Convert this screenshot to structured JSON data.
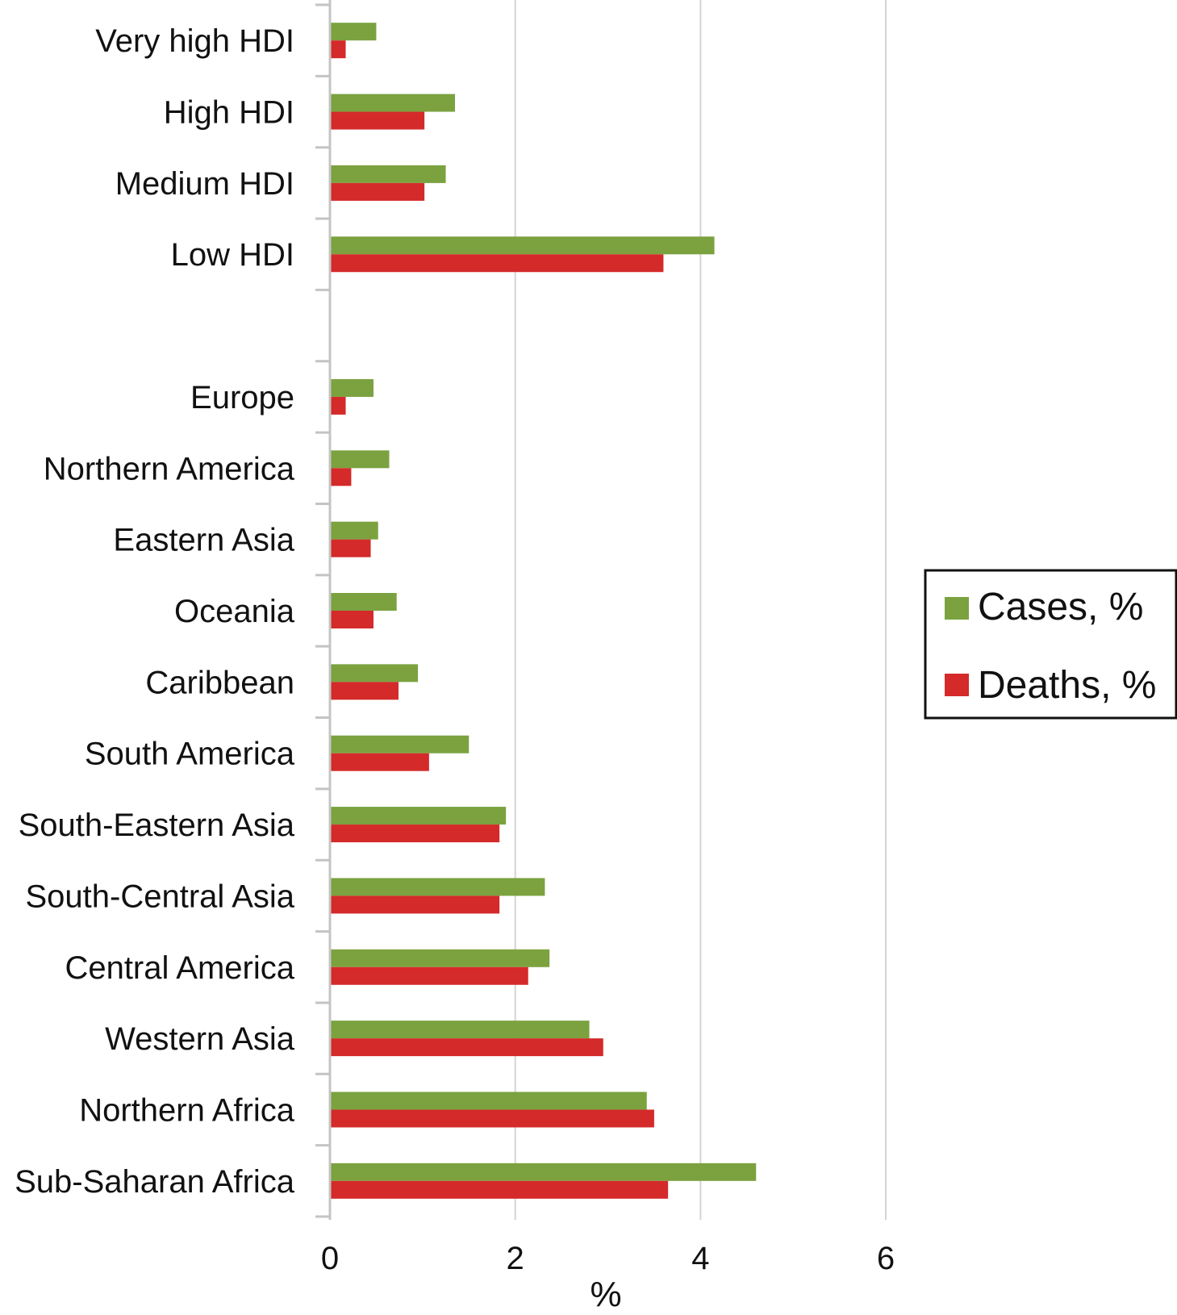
{
  "chart_data": {
    "type": "bar",
    "orientation": "horizontal",
    "categories": [
      "Very high HDI",
      "High HDI",
      "Medium HDI",
      "Low HDI",
      "",
      "Europe",
      "Northern America",
      "Eastern Asia",
      "Oceania",
      "Caribbean",
      "South America",
      "South-Eastern Asia",
      "South-Central Asia",
      "Central America",
      "Western Asia",
      "Northern Africa",
      "Sub-Saharan Africa"
    ],
    "series": [
      {
        "name": "Cases, %",
        "color": "#7ba23f",
        "values": [
          0.5,
          1.35,
          1.25,
          4.15,
          null,
          0.47,
          0.64,
          0.52,
          0.72,
          0.95,
          1.5,
          1.9,
          2.32,
          2.37,
          2.8,
          3.42,
          4.6
        ]
      },
      {
        "name": "Deaths, %",
        "color": "#d42a2a",
        "values": [
          0.17,
          1.02,
          1.02,
          3.6,
          null,
          0.17,
          0.23,
          0.44,
          0.47,
          0.74,
          1.07,
          1.83,
          1.83,
          2.14,
          2.95,
          3.5,
          3.65
        ]
      }
    ],
    "xlim": [
      0,
      6
    ],
    "xticks": [
      0,
      2,
      4,
      6
    ],
    "xlabel": "%",
    "ylabel": "",
    "title": "",
    "grid": "vertical",
    "legend": {
      "position": "right",
      "entries": [
        "Cases, %",
        "Deaths, %"
      ]
    }
  }
}
